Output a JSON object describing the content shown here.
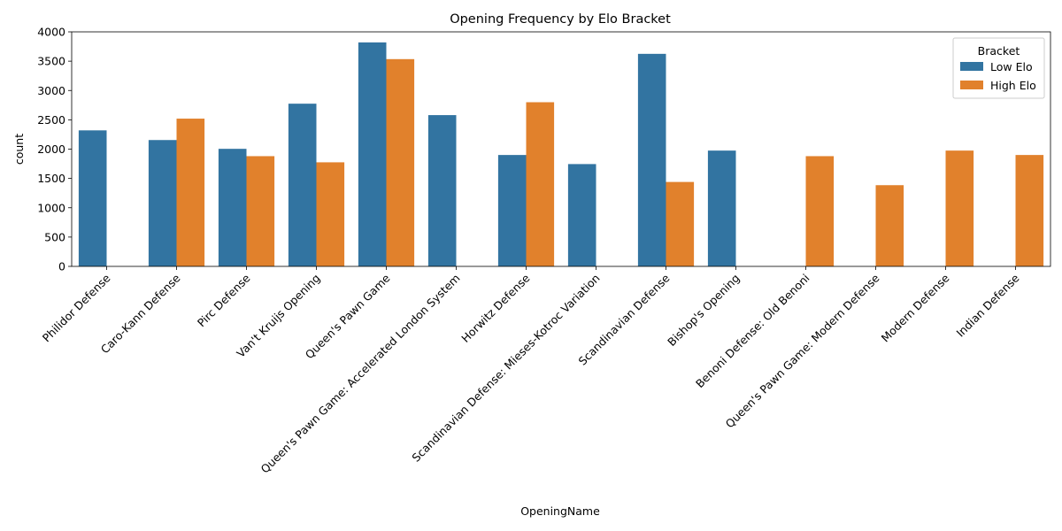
{
  "chart_data": {
    "type": "bar",
    "title": "Opening Frequency by Elo Bracket",
    "xlabel": "OpeningName",
    "ylabel": "count",
    "ylim": [
      0,
      4000
    ],
    "yticks": [
      0,
      500,
      1000,
      1500,
      2000,
      2500,
      3000,
      3500,
      4000
    ],
    "grid": false,
    "legend": {
      "title": "Bracket",
      "placement": "top-right"
    },
    "categories": [
      "Philidor Defense",
      "Caro-Kann Defense",
      "Pirc Defense",
      "Van't Kruijs Opening",
      "Queen's Pawn Game",
      "Queen's Pawn Game: Accelerated London System",
      "Horwitz Defense",
      "Scandinavian Defense: Mieses-Kotroc Variation",
      "Scandinavian Defense",
      "Bishop's Opening",
      "Benoni Defense: Old Benoni",
      "Queen's Pawn Game: Modern Defense",
      "Modern Defense",
      "Indian Defense"
    ],
    "series": [
      {
        "name": "Low Elo",
        "color": "#3274a1",
        "values": [
          2320,
          2155,
          2005,
          2775,
          3820,
          2580,
          1900,
          1745,
          3625,
          1975,
          null,
          null,
          null,
          null
        ]
      },
      {
        "name": "High Elo",
        "color": "#e1812c",
        "values": [
          null,
          2520,
          1880,
          1775,
          3535,
          null,
          2800,
          null,
          1440,
          null,
          1880,
          1385,
          1975,
          1900
        ]
      }
    ]
  }
}
